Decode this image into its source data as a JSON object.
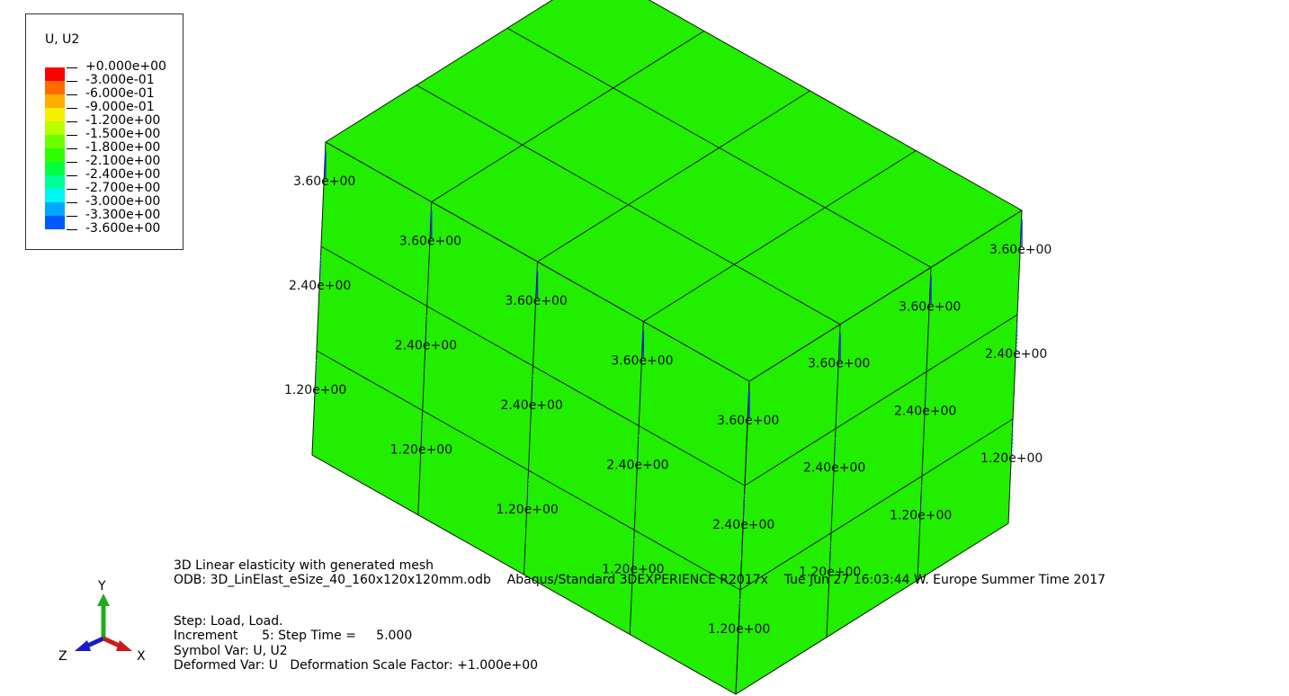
{
  "legend": {
    "title": "U, U2",
    "entries": [
      "+0.000e+00",
      "-3.000e-01",
      "-6.000e-01",
      "-9.000e-01",
      "-1.200e+00",
      "-1.500e+00",
      "-1.800e+00",
      "-2.100e+00",
      "-2.400e+00",
      "-2.700e+00",
      "-3.000e+00",
      "-3.300e+00",
      "-3.600e+00"
    ],
    "colors": [
      "#ff0000",
      "#ff6a00",
      "#ffae00",
      "#f5f000",
      "#b8ff00",
      "#6cff00",
      "#2eff00",
      "#00ff3c",
      "#00ff9a",
      "#00f5f5",
      "#00a8ff",
      "#0058ff",
      "#0000ff"
    ]
  },
  "model": {
    "fill_color": "#22ee00",
    "edge_color": "#1a1a1a",
    "arrow_color": "#1a2aff"
  },
  "node_labels": [
    {
      "text": "3.60e+00"
    },
    {
      "text": "3.60e+00"
    },
    {
      "text": "3.60e+00"
    },
    {
      "text": "3.60e+00"
    },
    {
      "text": "3.60e+00"
    },
    {
      "text": "3.60e+00"
    },
    {
      "text": "3.60e+00"
    },
    {
      "text": "3.60e+00"
    },
    {
      "text": "2.40e+00"
    },
    {
      "text": "2.40e+00"
    },
    {
      "text": "2.40e+00"
    },
    {
      "text": "2.40e+00"
    },
    {
      "text": "2.40e+00"
    },
    {
      "text": "2.40e+00"
    },
    {
      "text": "2.40e+00"
    },
    {
      "text": "2.40e+00"
    },
    {
      "text": "1.20e+00"
    },
    {
      "text": "1.20e+00"
    },
    {
      "text": "1.20e+00"
    },
    {
      "text": "1.20e+00"
    },
    {
      "text": "1.20e+00"
    },
    {
      "text": "1.20e+00"
    },
    {
      "text": "1.20e+00"
    },
    {
      "text": "1.20e+00"
    }
  ],
  "info": {
    "title": "3D Linear elasticity with generated mesh",
    "odb": "ODB: 3D_LinElast_eSize_40_160x120x120mm.odb    Abaqus/Standard 3DEXPERIENCE R2017x    Tue Jun 27 16:03:44 W. Europe Summer Time 2017",
    "step": "Step: Load, Load.",
    "increment": "Increment      5: Step Time =     5.000",
    "symbol_var": "Symbol Var: U, U2",
    "deformed_var": "Deformed Var: U   Deformation Scale Factor: +1.000e+00"
  },
  "triad": {
    "y_label": "Y",
    "z_label": "Z",
    "x_label": "X",
    "y_color": "#22aa22",
    "z_color": "#1a1acc",
    "x_color": "#cc1a1a"
  }
}
